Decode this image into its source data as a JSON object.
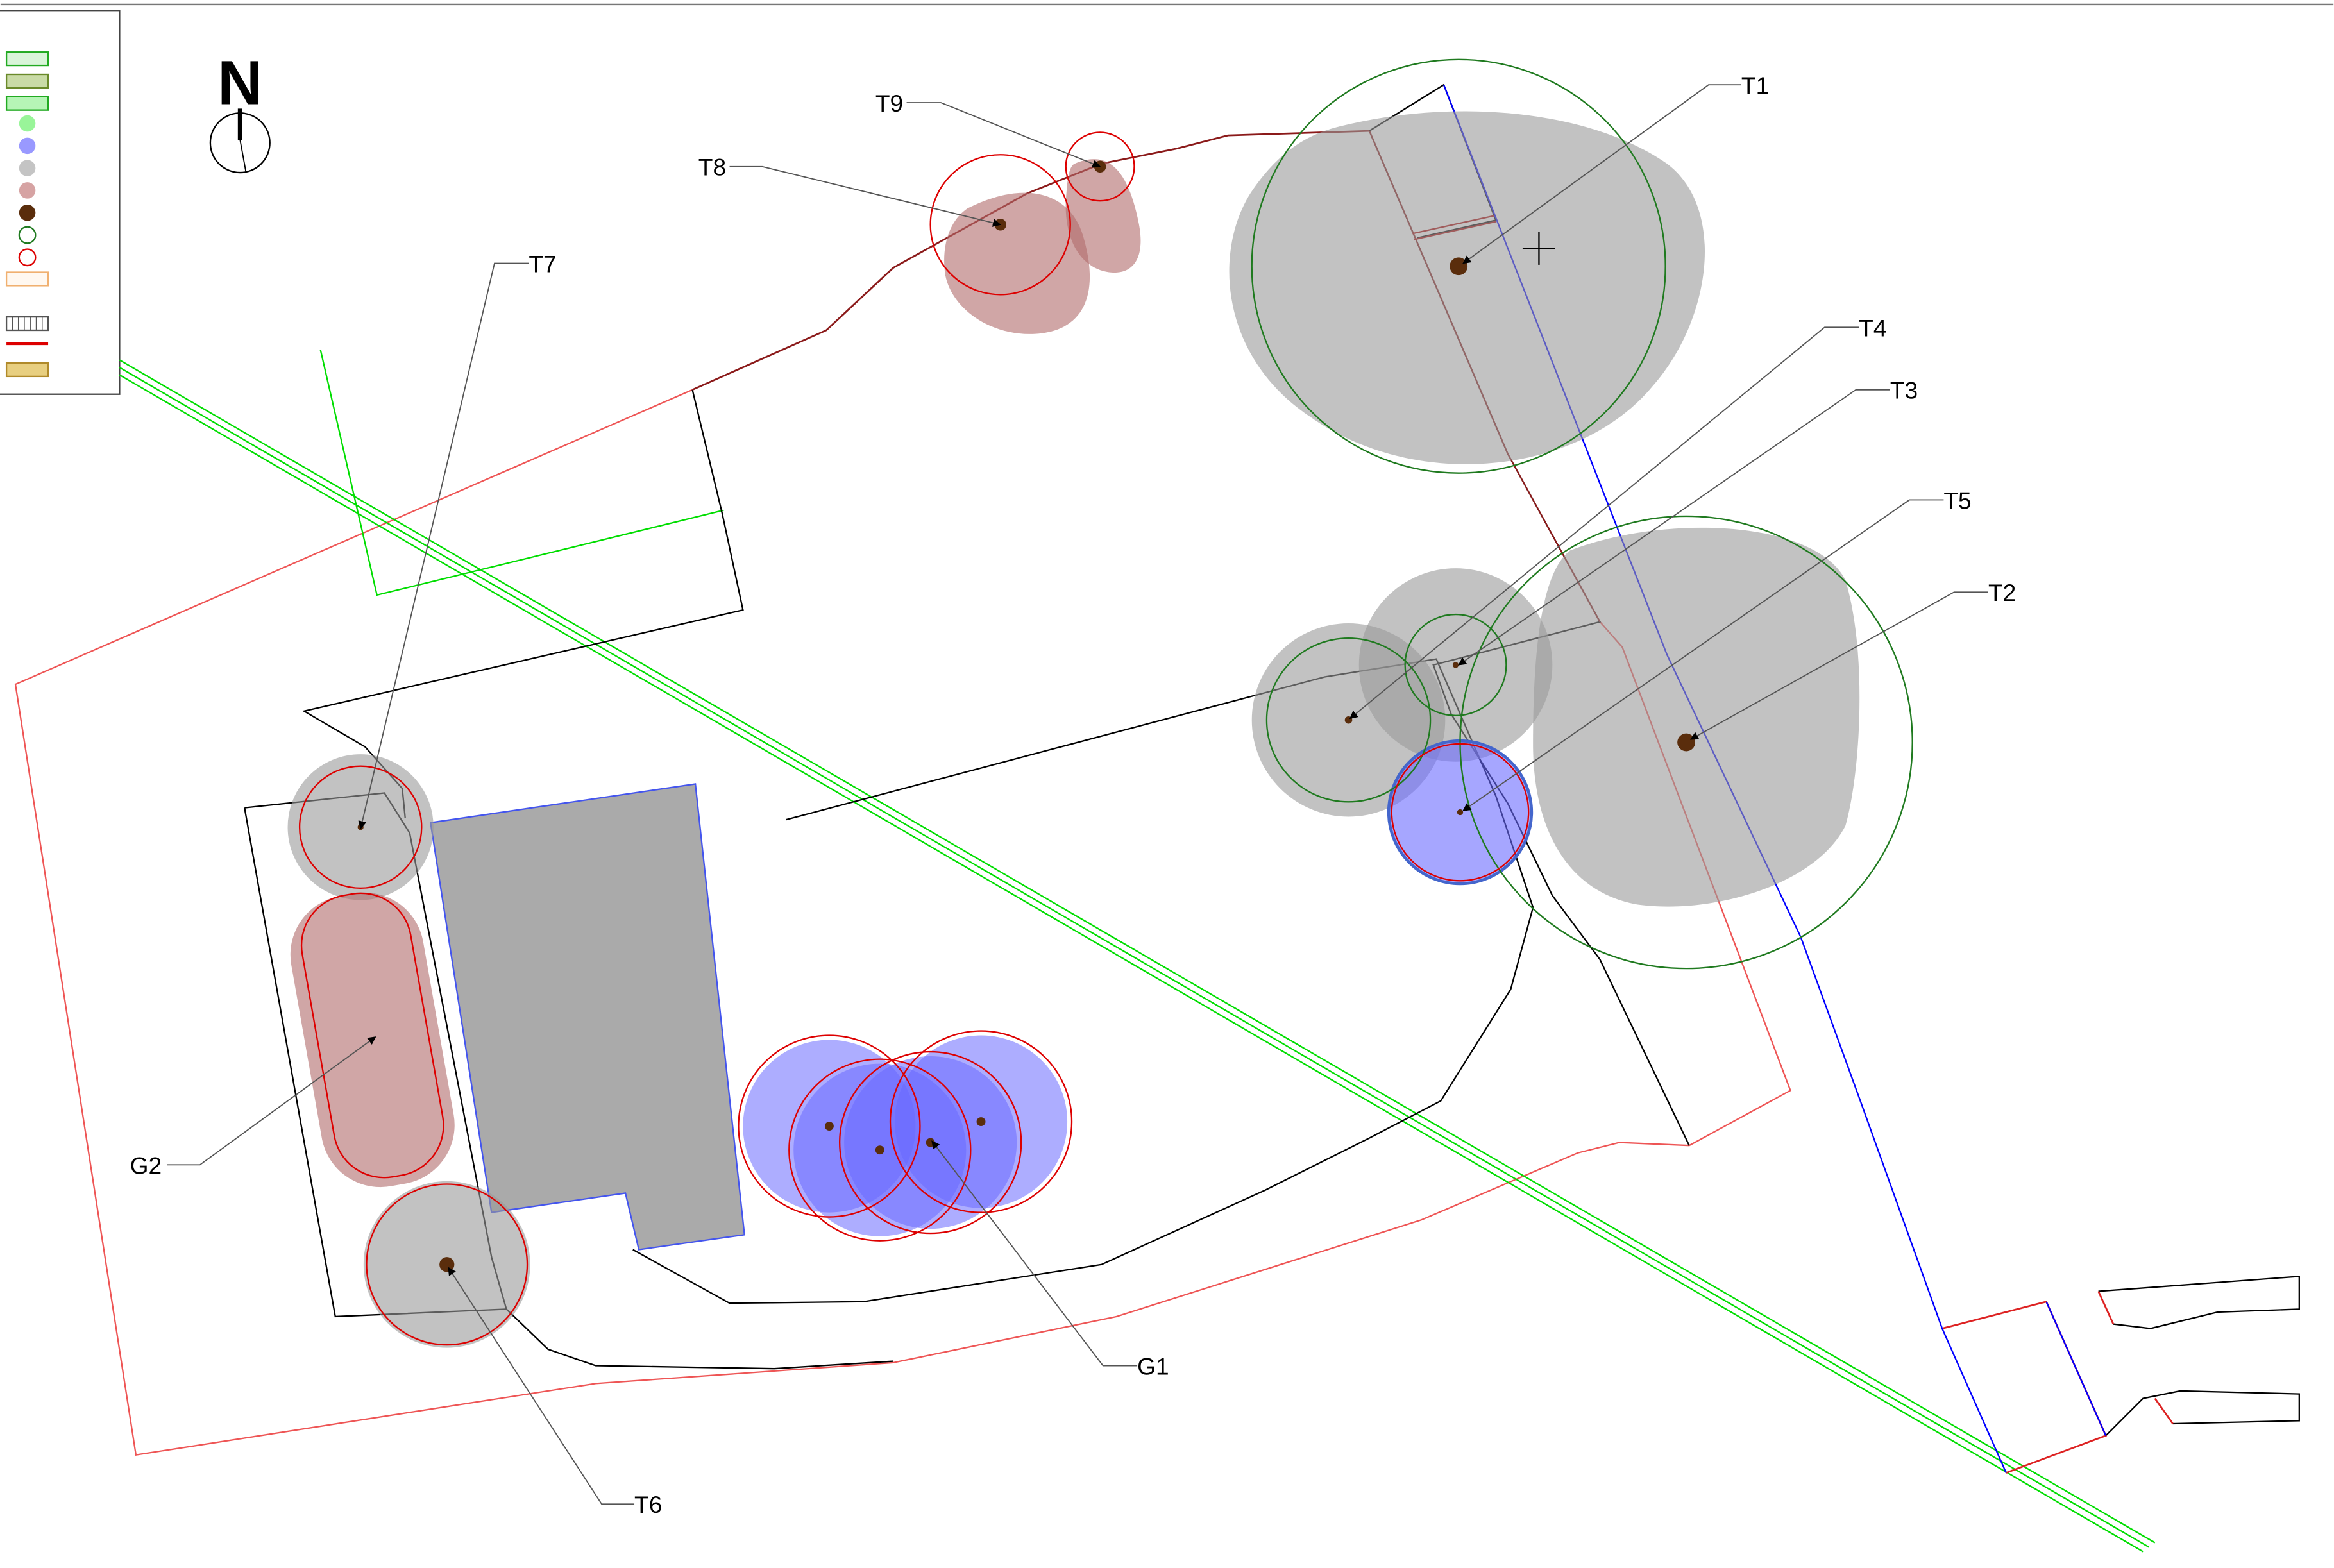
{
  "north": {
    "label": "N"
  },
  "trees": [
    {
      "id": "T1",
      "label": "T1",
      "category": "retained",
      "canopy_color": "#999999"
    },
    {
      "id": "T2",
      "label": "T2",
      "category": "retained",
      "canopy_color": "#999999"
    },
    {
      "id": "T3",
      "label": "T3",
      "category": "retained",
      "canopy_color": "#999999"
    },
    {
      "id": "T4",
      "label": "T4",
      "category": "retained",
      "canopy_color": "#999999"
    },
    {
      "id": "T5",
      "label": "T5",
      "category": "blue",
      "canopy_color": "#6a6aff"
    },
    {
      "id": "T6",
      "label": "T6",
      "category": "retained",
      "canopy_color": "#999999"
    },
    {
      "id": "T7",
      "label": "T7",
      "category": "retained",
      "canopy_color": "#999999"
    },
    {
      "id": "T8",
      "label": "T8",
      "category": "removed",
      "canopy_color": "#b06a6a"
    },
    {
      "id": "T9",
      "label": "T9",
      "category": "removed",
      "canopy_color": "#b06a6a"
    }
  ],
  "groups": [
    {
      "id": "G1",
      "label": "G1",
      "category": "blue",
      "canopy_color": "#6a6aff"
    },
    {
      "id": "G2",
      "label": "G2",
      "category": "removed",
      "canopy_color": "#b06a6a"
    }
  ],
  "legend_symbols": [
    {
      "name": "legend-swatch-light-green",
      "fill": "#d9f5d9",
      "stroke": "#22aa22"
    },
    {
      "name": "legend-swatch-olive",
      "fill": "#c9dba6",
      "stroke": "#6a8a2a"
    },
    {
      "name": "legend-swatch-green",
      "fill": "#b6f5b6",
      "stroke": "#22aa22"
    },
    {
      "name": "legend-dot-green",
      "fill": "#99f599",
      "stroke": "#99f599"
    },
    {
      "name": "legend-dot-blue",
      "fill": "#9999ff",
      "stroke": "#9999ff"
    },
    {
      "name": "legend-dot-grey",
      "fill": "#c4c4c4",
      "stroke": "#c4c4c4"
    },
    {
      "name": "legend-dot-pink",
      "fill": "#d6a3a3",
      "stroke": "#d6a3a3"
    },
    {
      "name": "legend-dot-brown",
      "fill": "#5a2d0c",
      "stroke": "#5a2d0c"
    },
    {
      "name": "legend-ring-green",
      "fill": "none",
      "stroke": "#1f7a1f"
    },
    {
      "name": "legend-ring-red",
      "fill": "none",
      "stroke": "#dd0000"
    },
    {
      "name": "legend-swatch-orange-outline",
      "fill": "#fff8f0",
      "stroke": "#f0b070"
    },
    {
      "name": "legend-swatch-hatched",
      "fill": "#ffffff",
      "stroke": "#555555"
    },
    {
      "name": "legend-line-red",
      "fill": "none",
      "stroke": "#dd0000"
    },
    {
      "name": "legend-swatch-tan",
      "fill": "#e8cf80",
      "stroke": "#b08a2a"
    }
  ],
  "colors": {
    "boundary": "#ee5555",
    "outline": "#000000",
    "service_green": "#00dd00",
    "service_blue": "#0000ff",
    "building": "#aaaaaa",
    "building_edge": "#4455ee",
    "rpa_green": "#1f7a1f",
    "rpa_red": "#dd0000",
    "stem": "#5a2d0c"
  }
}
